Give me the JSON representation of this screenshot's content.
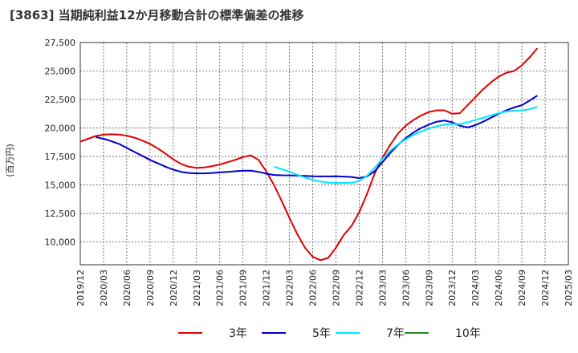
{
  "chart_data": {
    "type": "line",
    "title": "[3863]  当期純利益12か月移動合計の標準偏差の推移",
    "ylabel": "(百万円)",
    "xlabel": "",
    "ylim": [
      8000,
      27500
    ],
    "yticks": [
      "10,000",
      "12,500",
      "15,000",
      "17,500",
      "20,000",
      "22,500",
      "25,000",
      "27,500"
    ],
    "ytick_values": [
      10000,
      12500,
      15000,
      17500,
      20000,
      22500,
      25000,
      27500
    ],
    "xticks": [
      "2019/12",
      "2020/03",
      "2020/06",
      "2020/09",
      "2020/12",
      "2021/03",
      "2021/06",
      "2021/09",
      "2021/12",
      "2022/03",
      "2022/06",
      "2022/09",
      "2022/12",
      "2023/03",
      "2023/06",
      "2023/09",
      "2023/12",
      "2024/03",
      "2024/06",
      "2024/09",
      "2024/12",
      "2025/03"
    ],
    "grid": true,
    "legend_position": "bottom",
    "series": [
      {
        "name": "3年",
        "color": "#e00000",
        "start": "2019/12",
        "values": [
          18800,
          19050,
          19300,
          19420,
          19450,
          19420,
          19330,
          19150,
          18900,
          18600,
          18200,
          17750,
          17250,
          16850,
          16600,
          16500,
          16530,
          16650,
          16800,
          17000,
          17200,
          17450,
          17600,
          17200,
          16200,
          15000,
          13600,
          12100,
          10700,
          9500,
          8700,
          8400,
          8600,
          9500,
          10600,
          11400,
          12600,
          14200,
          16000,
          17400,
          18500,
          19500,
          20200,
          20700,
          21100,
          21400,
          21550,
          21550,
          21250,
          21300,
          22000,
          22700,
          23400,
          24000,
          24500,
          24850,
          25000,
          25500,
          26200,
          27000
        ]
      },
      {
        "name": "5年",
        "color": "#0000cc",
        "start": "2019/12",
        "values": [
          null,
          null,
          19200,
          19050,
          18850,
          18600,
          18250,
          17900,
          17550,
          17200,
          16900,
          16600,
          16350,
          16150,
          16050,
          16020,
          16020,
          16050,
          16100,
          16150,
          16200,
          16250,
          16250,
          16150,
          16000,
          15880,
          15850,
          15840,
          15820,
          15800,
          15760,
          15750,
          15750,
          15760,
          15740,
          15700,
          15600,
          15750,
          16200,
          17000,
          17800,
          18500,
          19100,
          19600,
          20000,
          20300,
          20550,
          20650,
          20500,
          20200,
          20050,
          20250,
          20550,
          20900,
          21250,
          21550,
          21800,
          22000,
          22400,
          22850
        ]
      },
      {
        "name": "7年",
        "color": "#00e5ff",
        "start": "2019/12",
        "values": [
          null,
          null,
          null,
          null,
          null,
          null,
          null,
          null,
          null,
          null,
          null,
          null,
          null,
          null,
          null,
          null,
          null,
          null,
          null,
          null,
          null,
          null,
          null,
          null,
          null,
          16600,
          16400,
          16150,
          15900,
          15650,
          15450,
          15300,
          15200,
          15180,
          15170,
          15200,
          15350,
          15800,
          16500,
          17300,
          18000,
          18550,
          19000,
          19400,
          19700,
          19950,
          20150,
          20300,
          20350,
          20350,
          20500,
          20700,
          20900,
          21100,
          21300,
          21450,
          21500,
          21550,
          21650,
          21850
        ]
      },
      {
        "name": "10年",
        "color": "#2a8a2a",
        "start": "2019/12",
        "values": []
      }
    ]
  }
}
